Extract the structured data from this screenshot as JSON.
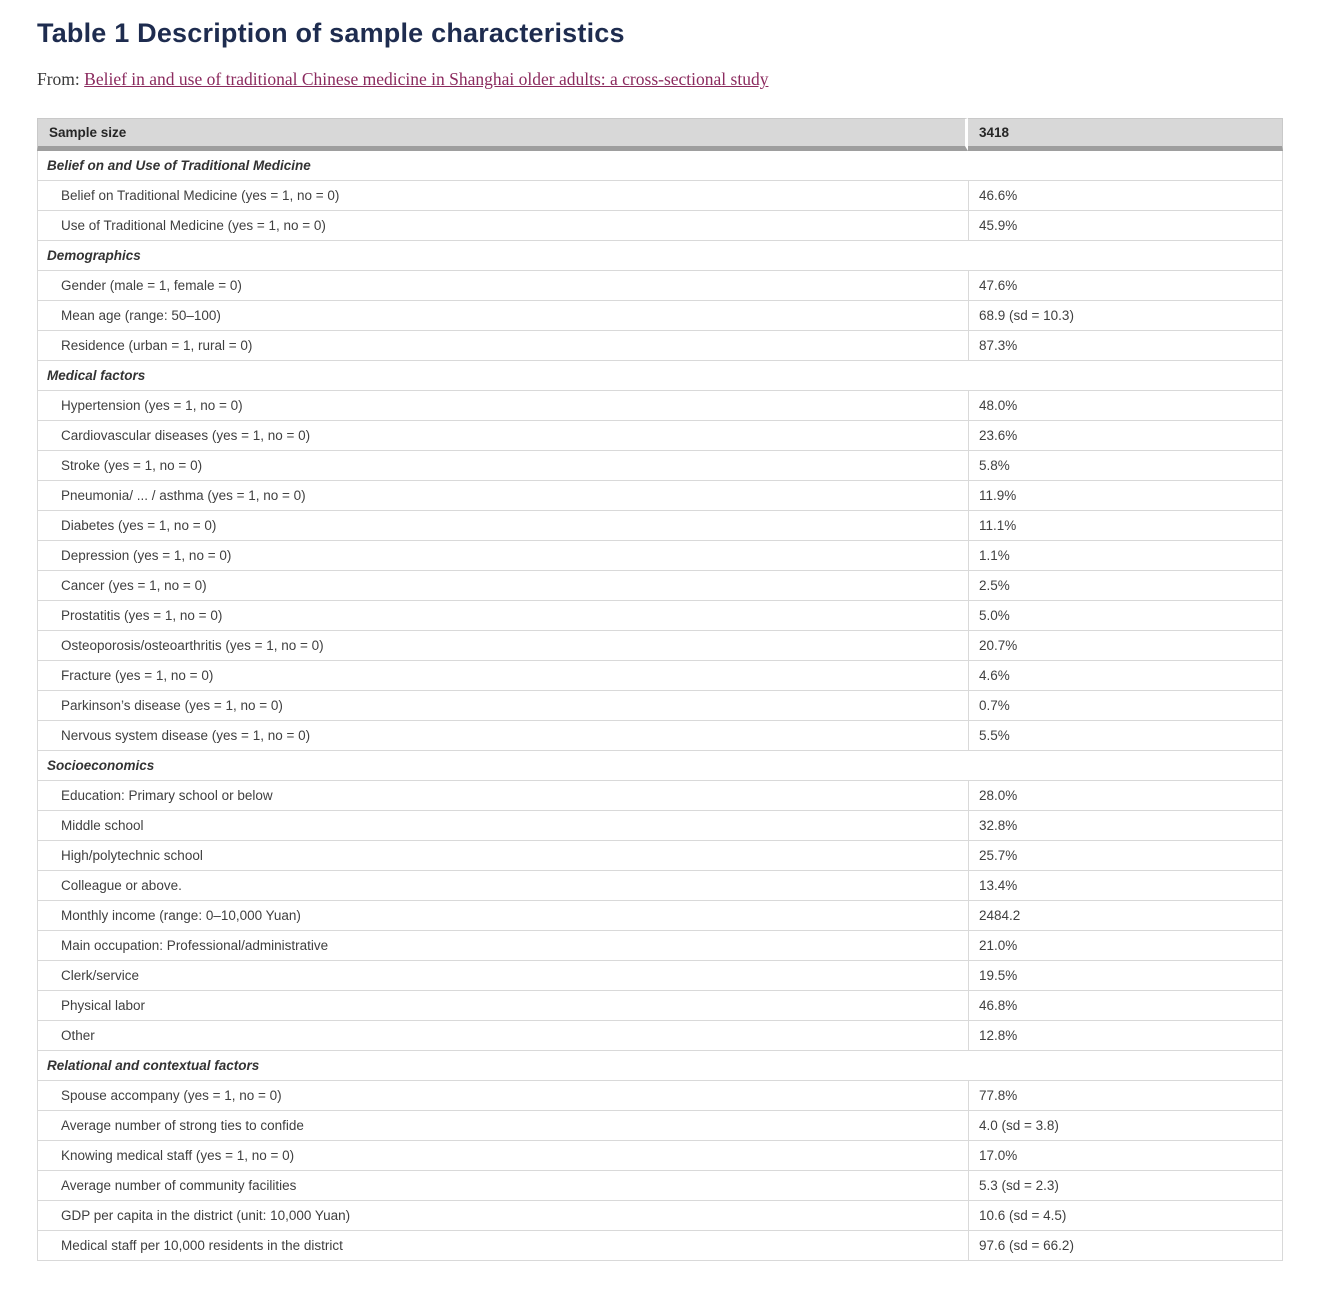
{
  "page": {
    "title": "Table 1 Description of sample characteristics",
    "from_label": "From: ",
    "source_link": "Belief in and use of traditional Chinese medicine in Shanghai older adults: a cross-sectional study"
  },
  "colors": {
    "title_text": "#1e2c4f",
    "link_text": "#8b2a5e",
    "header_bg": "#d8d8d8",
    "header_rule": "#9e9e9e",
    "grid_line": "#d9d9d9",
    "body_text": "#3f3f3f"
  },
  "table": {
    "header": {
      "label": "Sample size",
      "value": "3418"
    },
    "sections": [
      {
        "title": "Belief on and Use of Traditional Medicine",
        "rows": [
          {
            "label": "Belief on Traditional Medicine (yes = 1, no = 0)",
            "value": "46.6%"
          },
          {
            "label": "Use of Traditional Medicine (yes = 1, no = 0)",
            "value": "45.9%"
          }
        ]
      },
      {
        "title": "Demographics",
        "rows": [
          {
            "label": "Gender (male = 1, female = 0)",
            "value": "47.6%"
          },
          {
            "label": "Mean age (range: 50–100)",
            "value": "68.9 (sd = 10.3)"
          },
          {
            "label": "Residence (urban = 1, rural = 0)",
            "value": "87.3%"
          }
        ]
      },
      {
        "title": "Medical factors",
        "rows": [
          {
            "label": "Hypertension (yes = 1, no = 0)",
            "value": "48.0%"
          },
          {
            "label": "Cardiovascular diseases (yes = 1, no = 0)",
            "value": "23.6%"
          },
          {
            "label": "Stroke (yes = 1, no = 0)",
            "value": "5.8%"
          },
          {
            "label": "Pneumonia/ ... / asthma (yes = 1, no = 0)",
            "value": "11.9%"
          },
          {
            "label": "Diabetes (yes = 1, no = 0)",
            "value": "11.1%"
          },
          {
            "label": "Depression (yes = 1, no = 0)",
            "value": "1.1%"
          },
          {
            "label": "Cancer (yes = 1, no = 0)",
            "value": "2.5%"
          },
          {
            "label": "Prostatitis (yes = 1, no = 0)",
            "value": "5.0%"
          },
          {
            "label": "Osteoporosis/osteoarthritis (yes = 1, no = 0)",
            "value": "20.7%"
          },
          {
            "label": "Fracture (yes = 1, no = 0)",
            "value": "4.6%"
          },
          {
            "label": "Parkinson’s disease (yes = 1, no = 0)",
            "value": "0.7%"
          },
          {
            "label": "Nervous system disease (yes = 1, no = 0)",
            "value": "5.5%"
          }
        ]
      },
      {
        "title": "Socioeconomics",
        "rows": [
          {
            "label": "Education: Primary school or below",
            "value": "28.0%"
          },
          {
            "label": "Middle school",
            "value": "32.8%"
          },
          {
            "label": "High/polytechnic school",
            "value": "25.7%"
          },
          {
            "label": "Colleague or above.",
            "value": "13.4%"
          },
          {
            "label": "Monthly income (range: 0–10,000 Yuan)",
            "value": "2484.2"
          },
          {
            "label": "Main occupation: Professional/administrative",
            "value": "21.0%"
          },
          {
            "label": "Clerk/service",
            "value": "19.5%"
          },
          {
            "label": "Physical labor",
            "value": "46.8%"
          },
          {
            "label": "Other",
            "value": "12.8%"
          }
        ]
      },
      {
        "title": "Relational and contextual factors",
        "rows": [
          {
            "label": "Spouse accompany (yes = 1, no = 0)",
            "value": "77.8%"
          },
          {
            "label": "Average number of strong ties to confide",
            "value": "4.0 (sd = 3.8)"
          },
          {
            "label": "Knowing medical staff (yes = 1, no = 0)",
            "value": "17.0%"
          },
          {
            "label": "Average number of community facilities",
            "value": "5.3 (sd = 2.3)"
          },
          {
            "label": "GDP per capita in the district (unit: 10,000 Yuan)",
            "value": "10.6 (sd = 4.5)"
          },
          {
            "label": "Medical staff per 10,000 residents in the district",
            "value": "97.6 (sd = 66.2)"
          }
        ]
      }
    ]
  }
}
